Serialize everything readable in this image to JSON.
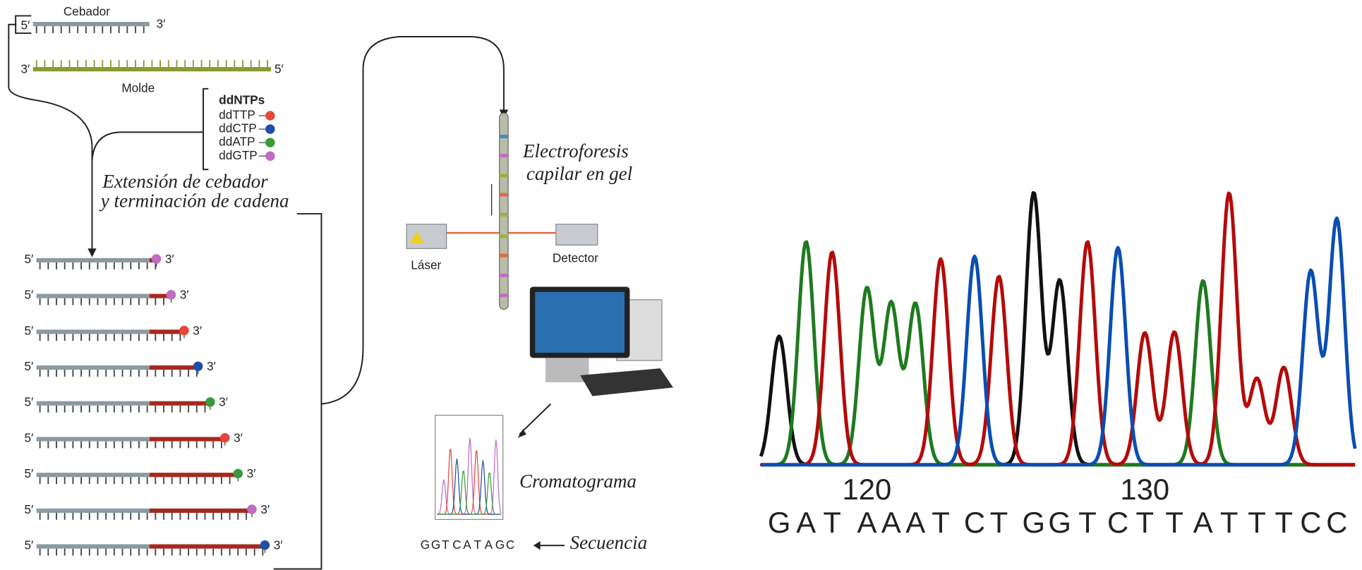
{
  "primer": {
    "label": "Cebador",
    "five": "5′",
    "three": "3′"
  },
  "template": {
    "label": "Molde",
    "three": "3′",
    "five": "5′"
  },
  "ddntps": {
    "title": "ddNTPs",
    "items": [
      {
        "label": "ddTTP",
        "color": "#e8463a"
      },
      {
        "label": "ddCTP",
        "color": "#1f4fa8"
      },
      {
        "label": "ddATP",
        "color": "#3a9a3a"
      },
      {
        "label": "ddGTP",
        "color": "#c06cc0"
      }
    ]
  },
  "extension": {
    "line1": "Extensión de cebador",
    "line2": "y terminación de cadena"
  },
  "fragments": {
    "five": "5′",
    "three": "3′"
  },
  "electrophoresis": {
    "line1": "Electroforesis",
    "line2": "capilar en gel"
  },
  "laser": "Láser",
  "detector": "Detector",
  "chromatogram_label": "Cromatograma",
  "sequence": {
    "letters": [
      "G",
      "G",
      "T",
      "C",
      "A",
      "T",
      "A",
      "G",
      "C"
    ],
    "label": "Secuencia",
    "colors": {
      "G": "#c06cc0",
      "T": "#e8463a",
      "C": "#1f4fa8",
      "A": "#3a9a3a"
    }
  },
  "trace": {
    "positions": [
      120,
      130
    ],
    "letters": [
      "G",
      "A",
      "T",
      "A",
      "A",
      "A",
      "T",
      "C",
      "T",
      "G",
      "G",
      "T",
      "C",
      "T",
      "T",
      "A",
      "T",
      "T",
      "T",
      "C",
      "C"
    ],
    "colors": {
      "G": "#111111",
      "A": "#1f7a1f",
      "T": "#b50a0a",
      "C": "#0b4db3"
    }
  }
}
